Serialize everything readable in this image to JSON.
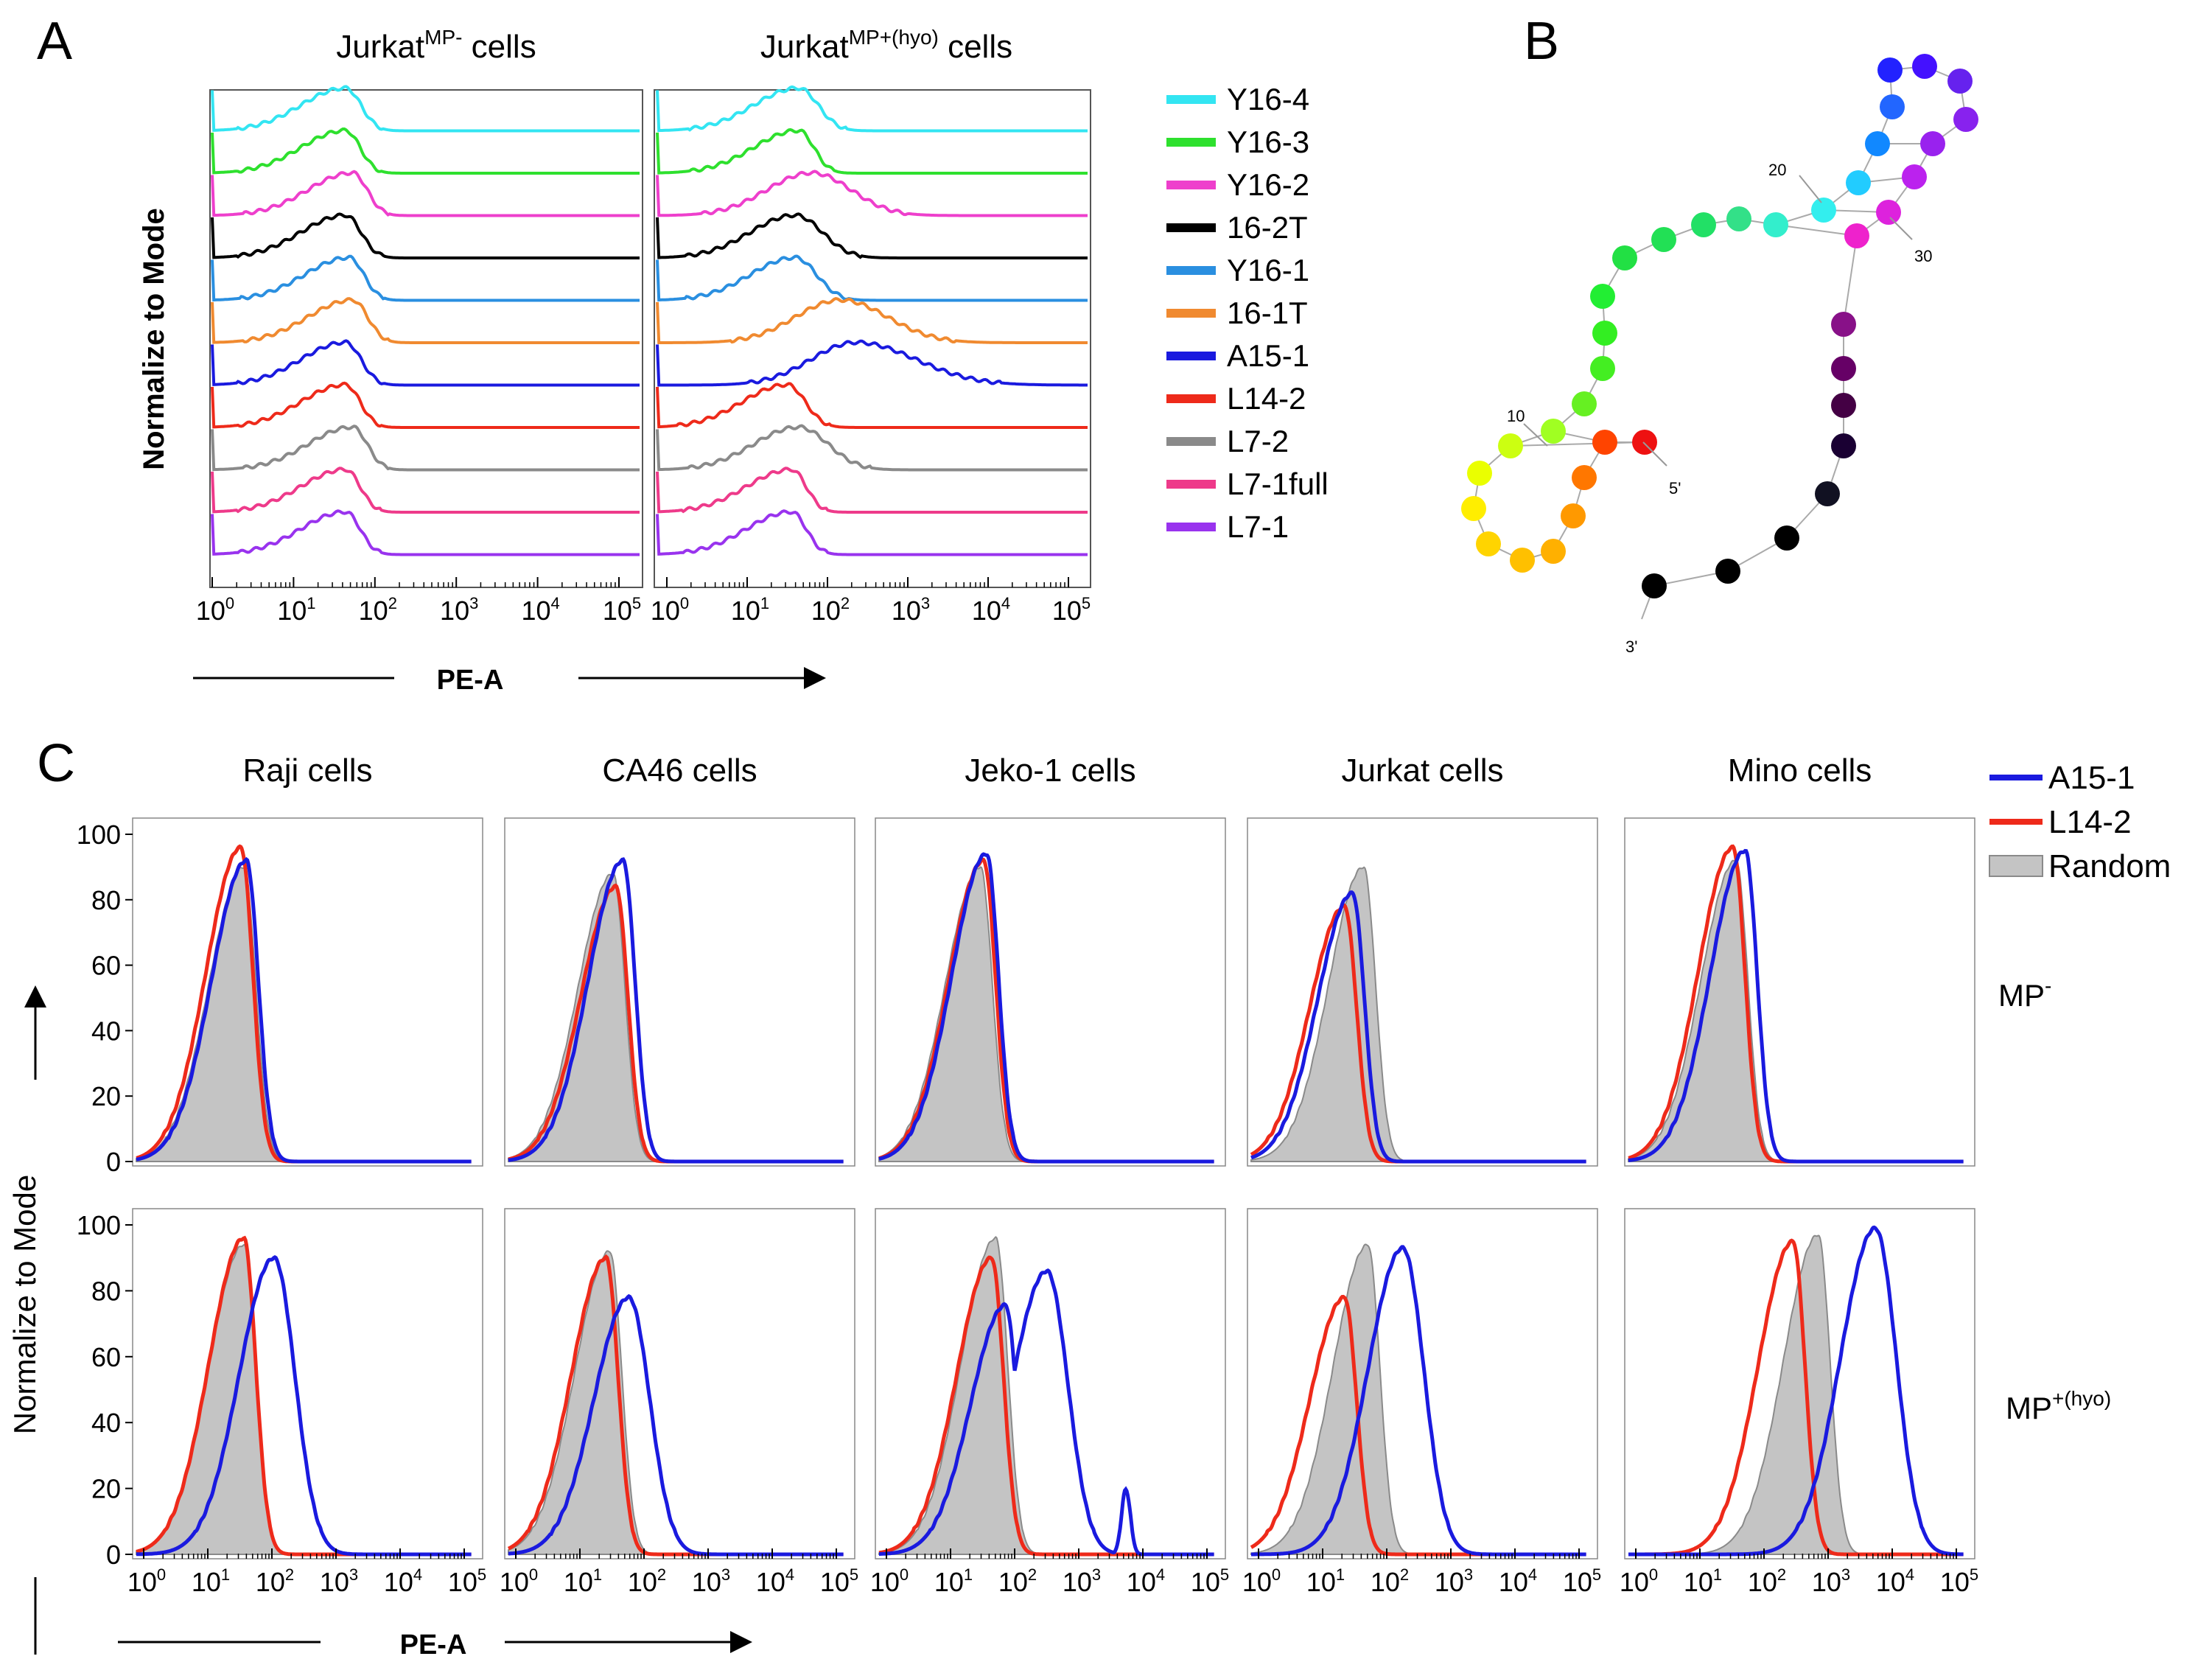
{
  "panels": {
    "A": "A",
    "B": "B",
    "C": "C"
  },
  "panelA": {
    "titles": [
      {
        "base": "Jurkat",
        "sup": "MP-",
        "rest": " cells"
      },
      {
        "base": "Jurkat",
        "sup": "MP+(hyo)",
        "rest": " cells"
      }
    ],
    "ylabel": "Normalize to Mode",
    "xlabel": "PE-A",
    "xtick_base": "10",
    "xtick_exps": [
      "0",
      "1",
      "2",
      "3",
      "4",
      "5"
    ]
  },
  "panelB": {
    "labels": [
      "20",
      "30",
      "10",
      "5'",
      "3'"
    ]
  },
  "panelC": {
    "titles": [
      "Raji cells",
      "CA46 cells",
      "Jeko-1 cells",
      "Jurkat cells",
      "Mino cells"
    ],
    "ylabel": "Normalize to Mode",
    "xlabel": "PE-A",
    "yticks": [
      "0",
      "20",
      "40",
      "60",
      "80",
      "100"
    ],
    "rowlabels": [
      {
        "base": "MP",
        "sup": "-"
      },
      {
        "base": "MP",
        "sup": "+(hyo)"
      }
    ],
    "legend": [
      "A15-1",
      "L14-2",
      "Random"
    ]
  },
  "colors": {
    "A15-1": "#1a1adf",
    "L14-2": "#ee2a1a",
    "Random": "#b8b8b8",
    "Y16-4": "#33e5f2",
    "Y16-3": "#2ee02e",
    "Y16-2": "#ee3fcc",
    "16-2T": "#000000",
    "Y16-1": "#2a8fe0",
    "16-1T": "#f08a30",
    "L7-2": "#8a8a8a",
    "L7-1full": "#ee3a8a",
    "L7-1": "#9933ee"
  },
  "chart_data": [
    {
      "type": "line",
      "title": "Jurkat MP- cells",
      "xlabel": "PE-A",
      "ylabel": "Normalize to Mode",
      "xscale": "log",
      "xlim": [
        1,
        200000
      ],
      "series": [
        {
          "name": "Y16-4",
          "peak_x": 45,
          "tail_x": 100
        },
        {
          "name": "Y16-3",
          "peak_x": 45,
          "tail_x": 90
        },
        {
          "name": "Y16-2",
          "peak_x": 55,
          "tail_x": 110
        },
        {
          "name": "16-2T",
          "peak_x": 45,
          "tail_x": 100
        },
        {
          "name": "Y16-1",
          "peak_x": 50,
          "tail_x": 100
        },
        {
          "name": "16-1T",
          "peak_x": 55,
          "tail_x": 120
        },
        {
          "name": "A15-1",
          "peak_x": 45,
          "tail_x": 100
        },
        {
          "name": "L14-2",
          "peak_x": 45,
          "tail_x": 90
        },
        {
          "name": "L7-2",
          "peak_x": 55,
          "tail_x": 110
        },
        {
          "name": "L7-1full",
          "peak_x": 45,
          "tail_x": 90
        },
        {
          "name": "L7-1",
          "peak_x": 45,
          "tail_x": 90
        }
      ]
    },
    {
      "type": "line",
      "title": "Jurkat MP+(hyo) cells",
      "xlabel": "PE-A",
      "ylabel": "Normalize to Mode",
      "xscale": "log",
      "xlim": [
        1,
        200000
      ],
      "series": [
        {
          "name": "Y16-4",
          "peak_x": 55,
          "tail_x": 150
        },
        {
          "name": "Y16-3",
          "peak_x": 55,
          "tail_x": 120
        },
        {
          "name": "Y16-2",
          "peak_x": 80,
          "tail_x": 600
        },
        {
          "name": "16-2T",
          "peak_x": 50,
          "tail_x": 200
        },
        {
          "name": "Y16-1",
          "peak_x": 50,
          "tail_x": 150
        },
        {
          "name": "16-1T",
          "peak_x": 180,
          "tail_x": 2000
        },
        {
          "name": "A15-1",
          "peak_x": 280,
          "tail_x": 6000
        },
        {
          "name": "L14-2",
          "peak_x": 40,
          "tail_x": 100
        },
        {
          "name": "L7-2",
          "peak_x": 55,
          "tail_x": 250
        },
        {
          "name": "L7-1full",
          "peak_x": 45,
          "tail_x": 90
        },
        {
          "name": "L7-1",
          "peak_x": 45,
          "tail_x": 90
        }
      ]
    },
    {
      "type": "area",
      "title": "Raji cells MP-",
      "xscale": "log",
      "ylim": [
        0,
        100
      ],
      "series": [
        {
          "name": "A15-1",
          "peak_x": 55,
          "peak_y": 92
        },
        {
          "name": "L14-2",
          "peak_x": 45,
          "peak_y": 96
        },
        {
          "name": "Random",
          "peak_x": 50,
          "peak_y": 90
        }
      ]
    },
    {
      "type": "area",
      "title": "CA46 cells MP-",
      "xscale": "log",
      "ylim": [
        0,
        100
      ],
      "series": [
        {
          "name": "A15-1",
          "peak_x": 65,
          "peak_y": 92
        },
        {
          "name": "L14-2",
          "peak_x": 50,
          "peak_y": 84
        },
        {
          "name": "Random",
          "peak_x": 45,
          "peak_y": 88
        }
      ]
    },
    {
      "type": "area",
      "title": "Jeko-1 cells MP-",
      "xscale": "log",
      "ylim": [
        0,
        100
      ],
      "series": [
        {
          "name": "A15-1",
          "peak_x": 50,
          "peak_y": 94
        },
        {
          "name": "L14-2",
          "peak_x": 45,
          "peak_y": 92
        },
        {
          "name": "Random",
          "peak_x": 40,
          "peak_y": 90
        }
      ]
    },
    {
      "type": "area",
      "title": "Jurkat cells MP-",
      "xscale": "log",
      "ylim": [
        0,
        100
      ],
      "series": [
        {
          "name": "A15-1",
          "peak_x": 40,
          "peak_y": 82
        },
        {
          "name": "L14-2",
          "peak_x": 30,
          "peak_y": 78
        },
        {
          "name": "Random",
          "peak_x": 60,
          "peak_y": 90
        }
      ]
    },
    {
      "type": "area",
      "title": "Mino cells MP-",
      "xscale": "log",
      "ylim": [
        0,
        100
      ],
      "series": [
        {
          "name": "A15-1",
          "peak_x": 70,
          "peak_y": 95
        },
        {
          "name": "L14-2",
          "peak_x": 45,
          "peak_y": 96
        },
        {
          "name": "Random",
          "peak_x": 50,
          "peak_y": 92
        }
      ]
    },
    {
      "type": "area",
      "title": "Raji cells MP+(hyo)",
      "xscale": "log",
      "ylim": [
        0,
        100
      ],
      "series": [
        {
          "name": "A15-1",
          "peak_x": 150,
          "peak_y": 90
        },
        {
          "name": "L14-2",
          "peak_x": 50,
          "peak_y": 96
        },
        {
          "name": "Random",
          "peak_x": 50,
          "peak_y": 94
        }
      ]
    },
    {
      "type": "area",
      "title": "CA46 cells MP+(hyo)",
      "xscale": "log",
      "ylim": [
        0,
        100
      ],
      "series": [
        {
          "name": "A15-1",
          "peak_x": 80,
          "peak_y": 78
        },
        {
          "name": "L14-2",
          "peak_x": 35,
          "peak_y": 90
        },
        {
          "name": "Random",
          "peak_x": 40,
          "peak_y": 92
        }
      ]
    },
    {
      "type": "area",
      "title": "Jeko-1 cells MP+(hyo)",
      "xscale": "log",
      "ylim": [
        0,
        100
      ],
      "series": [
        {
          "name": "A15-1",
          "peak_x": 450,
          "peak_y": 86
        },
        {
          "name": "L14-2",
          "peak_x": 60,
          "peak_y": 90
        },
        {
          "name": "Random",
          "peak_x": 70,
          "peak_y": 96
        }
      ]
    },
    {
      "type": "area",
      "title": "Jurkat cells MP+(hyo)",
      "xscale": "log",
      "ylim": [
        0,
        100
      ],
      "series": [
        {
          "name": "A15-1",
          "peak_x": 250,
          "peak_y": 93
        },
        {
          "name": "L14-2",
          "peak_x": 30,
          "peak_y": 78
        },
        {
          "name": "Random",
          "peak_x": 70,
          "peak_y": 94
        }
      ]
    },
    {
      "type": "area",
      "title": "Mino cells MP+(hyo)",
      "xscale": "log",
      "ylim": [
        0,
        100
      ],
      "series": [
        {
          "name": "A15-1",
          "peak_x": 8000,
          "peak_y": 99
        },
        {
          "name": "L14-2",
          "peak_x": 400,
          "peak_y": 95
        },
        {
          "name": "Random",
          "peak_x": 1000,
          "peak_y": 97
        }
      ]
    }
  ]
}
